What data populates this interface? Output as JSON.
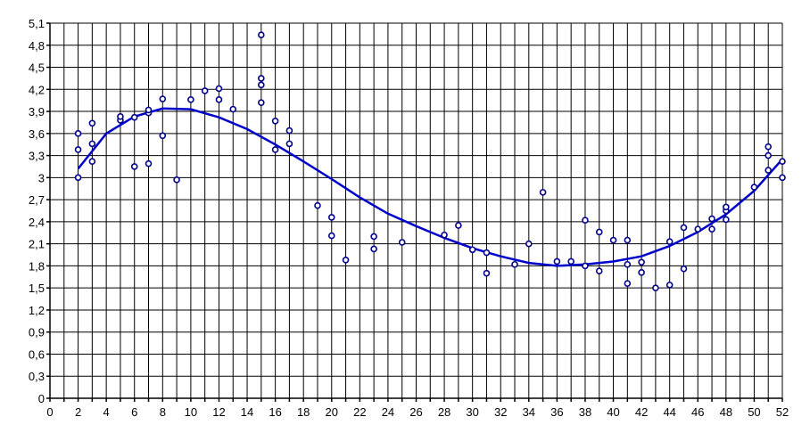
{
  "chart_data": {
    "type": "scatter",
    "title": "",
    "xlabel": "",
    "ylabel": "",
    "xlim": [
      0,
      52
    ],
    "ylim": [
      0,
      5.1
    ],
    "x_ticks": [
      0,
      2,
      4,
      6,
      8,
      10,
      12,
      14,
      16,
      18,
      20,
      22,
      24,
      26,
      28,
      30,
      32,
      34,
      36,
      38,
      40,
      42,
      44,
      46,
      48,
      50,
      52
    ],
    "y_ticks": [
      0,
      0.3,
      0.6,
      0.9,
      1.2,
      1.5,
      1.8,
      2.1,
      2.4,
      2.7,
      3,
      3.3,
      3.6,
      3.9,
      4.2,
      4.5,
      4.8,
      5.1
    ],
    "y_tick_labels": [
      "0",
      "0,3",
      "0,6",
      "0,9",
      "1,2",
      "1,5",
      "1,8",
      "2,1",
      "2,4",
      "2,7",
      "3",
      "3,3",
      "3,6",
      "3,9",
      "4,2",
      "4,5",
      "4,8",
      "5,1"
    ],
    "grid": true,
    "legend": "none",
    "colors": {
      "points": "#00008b",
      "trendline": "#0000cc",
      "grid": "#000000"
    },
    "points": [
      [
        2,
        3.0
      ],
      [
        2,
        3.38
      ],
      [
        2,
        3.6
      ],
      [
        3,
        3.22
      ],
      [
        3,
        3.46
      ],
      [
        3,
        3.74
      ],
      [
        5,
        3.78
      ],
      [
        5,
        3.83
      ],
      [
        6,
        3.15
      ],
      [
        6,
        3.82
      ],
      [
        7,
        3.19
      ],
      [
        7,
        3.88
      ],
      [
        7,
        3.92
      ],
      [
        8,
        3.57
      ],
      [
        8,
        4.07
      ],
      [
        9,
        2.97
      ],
      [
        10,
        4.06
      ],
      [
        11,
        4.18
      ],
      [
        12,
        4.06
      ],
      [
        12,
        4.21
      ],
      [
        13,
        3.93
      ],
      [
        15,
        4.02
      ],
      [
        15,
        4.26
      ],
      [
        15,
        4.35
      ],
      [
        15,
        4.94
      ],
      [
        16,
        3.38
      ],
      [
        16,
        3.77
      ],
      [
        17,
        3.46
      ],
      [
        17,
        3.64
      ],
      [
        19,
        2.62
      ],
      [
        20,
        2.21
      ],
      [
        20,
        2.46
      ],
      [
        21,
        1.88
      ],
      [
        23,
        2.03
      ],
      [
        23,
        2.2
      ],
      [
        25,
        2.12
      ],
      [
        28,
        2.22
      ],
      [
        29,
        2.35
      ],
      [
        30,
        2.02
      ],
      [
        31,
        1.7
      ],
      [
        31,
        1.98
      ],
      [
        33,
        1.82
      ],
      [
        34,
        2.1
      ],
      [
        35,
        2.8
      ],
      [
        36,
        1.86
      ],
      [
        37,
        1.86
      ],
      [
        38,
        1.8
      ],
      [
        38,
        2.42
      ],
      [
        39,
        1.73
      ],
      [
        39,
        2.26
      ],
      [
        40,
        2.15
      ],
      [
        41,
        1.56
      ],
      [
        41,
        1.82
      ],
      [
        41,
        2.15
      ],
      [
        42,
        1.71
      ],
      [
        42,
        1.85
      ],
      [
        43,
        1.5
      ],
      [
        44,
        1.54
      ],
      [
        44,
        2.13
      ],
      [
        45,
        1.76
      ],
      [
        45,
        2.32
      ],
      [
        46,
        2.3
      ],
      [
        47,
        2.3
      ],
      [
        47,
        2.44
      ],
      [
        48,
        2.43
      ],
      [
        48,
        2.55
      ],
      [
        48,
        2.6
      ],
      [
        50,
        2.87
      ],
      [
        51,
        3.1
      ],
      [
        51,
        3.3
      ],
      [
        51,
        3.42
      ],
      [
        52,
        3.0
      ],
      [
        52,
        3.22
      ]
    ],
    "trendline": [
      [
        2,
        3.12
      ],
      [
        4,
        3.6
      ],
      [
        6,
        3.83
      ],
      [
        8,
        3.94
      ],
      [
        10,
        3.93
      ],
      [
        12,
        3.82
      ],
      [
        14,
        3.66
      ],
      [
        16,
        3.45
      ],
      [
        18,
        3.22
      ],
      [
        20,
        2.98
      ],
      [
        22,
        2.73
      ],
      [
        24,
        2.51
      ],
      [
        26,
        2.34
      ],
      [
        28,
        2.18
      ],
      [
        30,
        2.04
      ],
      [
        32,
        1.93
      ],
      [
        34,
        1.84
      ],
      [
        36,
        1.8
      ],
      [
        38,
        1.82
      ],
      [
        40,
        1.86
      ],
      [
        42,
        1.93
      ],
      [
        44,
        2.07
      ],
      [
        46,
        2.26
      ],
      [
        48,
        2.5
      ],
      [
        50,
        2.82
      ],
      [
        52,
        3.25
      ]
    ]
  }
}
